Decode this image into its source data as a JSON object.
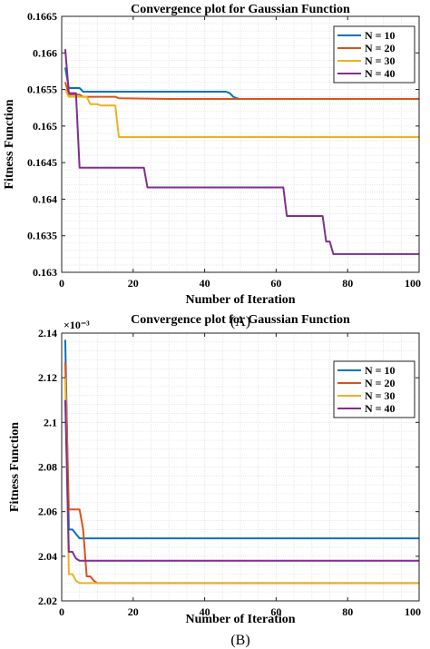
{
  "chart_data": [
    {
      "type": "line",
      "title": "Convergence plot for Gaussian Function",
      "xlabel": "Number of Iteration",
      "ylabel": "Fitness Function",
      "xlim": [
        0,
        100
      ],
      "ylim": [
        0.163,
        0.1665
      ],
      "xticks": [
        0,
        20,
        40,
        60,
        80,
        100
      ],
      "xtick_labels": [
        "0",
        "20",
        "40",
        "60",
        "80",
        "100"
      ],
      "yticks": [
        0.163,
        0.1635,
        0.164,
        0.1645,
        0.165,
        0.1655,
        0.166,
        0.1665
      ],
      "ytick_labels": [
        "0.163",
        "0.1635",
        "0.164",
        "0.1645",
        "0.165",
        "0.1655",
        "0.166",
        "0.1665"
      ],
      "grid": true,
      "legend_position": "top-right",
      "panel_label": "(A)",
      "series": [
        {
          "name": "N = 10",
          "color": "#0072BD",
          "x": [
            1,
            2,
            3,
            4,
            5,
            6,
            46,
            47,
            48,
            49,
            50,
            100
          ],
          "y": [
            0.1658,
            0.16552,
            0.16552,
            0.16552,
            0.16552,
            0.16547,
            0.16547,
            0.16545,
            0.1654,
            0.16538,
            0.16537,
            0.16537
          ]
        },
        {
          "name": "N = 20",
          "color": "#D95319",
          "x": [
            1,
            2,
            3,
            4,
            5,
            6,
            15,
            16,
            30,
            100
          ],
          "y": [
            0.1656,
            0.16543,
            0.16543,
            0.16543,
            0.16543,
            0.1654,
            0.1654,
            0.16538,
            0.16537,
            0.16537
          ]
        },
        {
          "name": "N = 30",
          "color": "#EDB120",
          "x": [
            1,
            2,
            3,
            4,
            5,
            6,
            7,
            8,
            9,
            10,
            11,
            12,
            15,
            16,
            100
          ],
          "y": [
            0.1655,
            0.1654,
            0.1654,
            0.1654,
            0.1654,
            0.1654,
            0.1654,
            0.1653,
            0.1653,
            0.1653,
            0.16528,
            0.16528,
            0.16528,
            0.16485,
            0.16485
          ]
        },
        {
          "name": "N = 40",
          "color": "#7E2F8E",
          "x": [
            1,
            2,
            3,
            4,
            5,
            23,
            24,
            62,
            63,
            73,
            74,
            75,
            76,
            100
          ],
          "y": [
            0.16605,
            0.16545,
            0.16545,
            0.16545,
            0.16443,
            0.16443,
            0.16416,
            0.16416,
            0.16377,
            0.16377,
            0.16342,
            0.16342,
            0.16325,
            0.16325
          ]
        }
      ]
    },
    {
      "type": "line",
      "title": "Convergence plot for Gaussian Function",
      "xlabel": "Number of Iteration",
      "ylabel": "Fitness Function",
      "scale_note": "×10⁻³",
      "xlim": [
        0,
        100
      ],
      "ylim": [
        2.02,
        2.14
      ],
      "xticks": [
        0,
        20,
        40,
        60,
        80,
        100
      ],
      "xtick_labels": [
        "0",
        "20",
        "40",
        "60",
        "80",
        "100"
      ],
      "yticks": [
        2.02,
        2.04,
        2.06,
        2.08,
        2.1,
        2.12,
        2.14
      ],
      "ytick_labels": [
        "2.02",
        "2.04",
        "2.06",
        "2.08",
        "2.1",
        "2.12",
        "2.14"
      ],
      "grid": true,
      "legend_position": "top-right",
      "panel_label": "(B)",
      "series": [
        {
          "name": "N = 10",
          "color": "#0072BD",
          "x": [
            1,
            2,
            3,
            4,
            5,
            100
          ],
          "y": [
            2.137,
            2.052,
            2.052,
            2.05,
            2.048,
            2.048
          ]
        },
        {
          "name": "N = 20",
          "color": "#D95319",
          "x": [
            1,
            2,
            5,
            6,
            7,
            8,
            9,
            10,
            100
          ],
          "y": [
            2.127,
            2.061,
            2.061,
            2.052,
            2.031,
            2.031,
            2.029,
            2.028,
            2.028
          ]
        },
        {
          "name": "N = 30",
          "color": "#EDB120",
          "x": [
            1,
            2,
            3,
            4,
            5,
            6,
            100
          ],
          "y": [
            2.12,
            2.032,
            2.032,
            2.029,
            2.028,
            2.028,
            2.028
          ]
        },
        {
          "name": "N = 40",
          "color": "#7E2F8E",
          "x": [
            1,
            2,
            3,
            4,
            5,
            100
          ],
          "y": [
            2.11,
            2.042,
            2.042,
            2.039,
            2.038,
            2.038
          ]
        }
      ]
    }
  ]
}
